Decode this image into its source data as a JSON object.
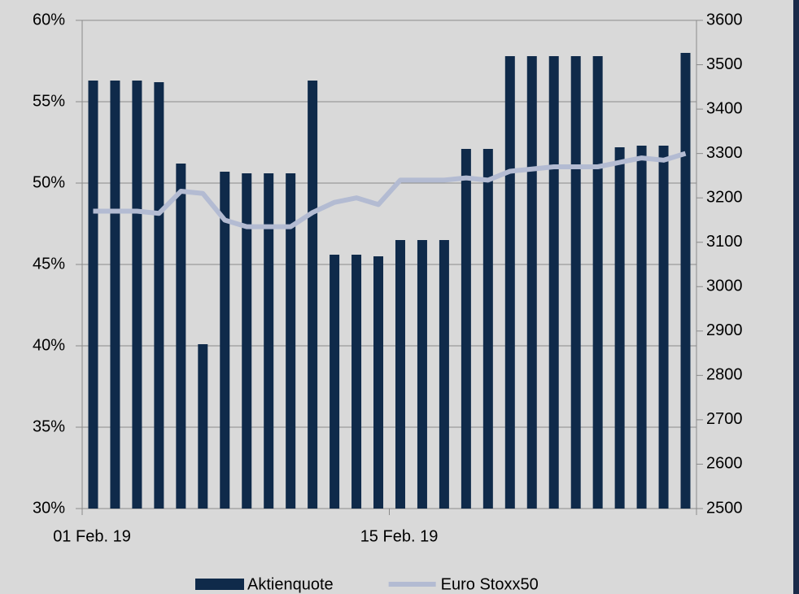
{
  "chart_data": {
    "type": "bar-line",
    "categories": [
      "01 Feb. 19",
      null,
      null,
      null,
      null,
      null,
      null,
      null,
      null,
      null,
      null,
      null,
      null,
      null,
      "15 Feb. 19",
      null,
      null,
      null,
      null,
      null,
      null,
      null,
      null,
      null,
      null,
      null,
      null,
      null
    ],
    "series": [
      {
        "name": "Aktienquote",
        "type": "bar",
        "axis": "y",
        "color": "#0f2a4a",
        "values": [
          56.3,
          56.3,
          56.3,
          56.2,
          51.2,
          40.1,
          50.7,
          50.6,
          50.6,
          50.6,
          56.3,
          45.6,
          45.6,
          45.5,
          46.5,
          46.5,
          46.5,
          52.1,
          52.1,
          57.8,
          57.8,
          57.8,
          57.8,
          57.8,
          52.2,
          52.3,
          52.3,
          58.0
        ]
      },
      {
        "name": "Euro Stoxx50",
        "type": "line",
        "axis": "y2",
        "color": "#b3bbd2",
        "values": [
          3170,
          3170,
          3170,
          3165,
          3215,
          3210,
          3150,
          3135,
          3135,
          3135,
          3167,
          3190,
          3200,
          3185,
          3240,
          3240,
          3240,
          3245,
          3240,
          3260,
          3265,
          3270,
          3270,
          3270,
          3280,
          3290,
          3285,
          3300
        ]
      }
    ],
    "ylim": [
      30,
      60
    ],
    "yticks": [
      {
        "value": 30,
        "label": "30%"
      },
      {
        "value": 35,
        "label": "35%"
      },
      {
        "value": 40,
        "label": "40%"
      },
      {
        "value": 45,
        "label": "45%"
      },
      {
        "value": 50,
        "label": "50%"
      },
      {
        "value": 55,
        "label": "55%"
      },
      {
        "value": 60,
        "label": "60%"
      }
    ],
    "y2lim": [
      2500,
      3600
    ],
    "y2ticks": [
      2500,
      2600,
      2700,
      2800,
      2900,
      3000,
      3100,
      3200,
      3300,
      3400,
      3500,
      3600
    ],
    "grid": true,
    "legend": "bottom"
  }
}
